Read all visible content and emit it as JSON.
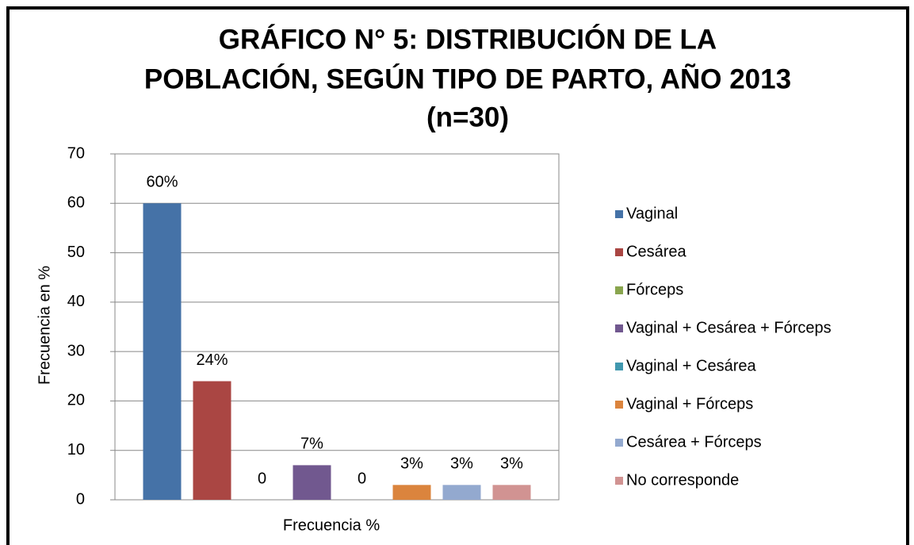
{
  "chart_data": {
    "type": "bar",
    "title": [
      "GRÁFICO N° 5: DISTRIBUCIÓN DE LA",
      "POBLACIÓN, SEGÚN  TIPO DE PARTO, AÑO 2013",
      "(n=30)"
    ],
    "ylabel": "Frecuencia en  %",
    "categories": [
      "Frecuencia %"
    ],
    "series": [
      {
        "name": "Vaginal",
        "color": "#4572A7",
        "values": [
          60
        ],
        "value_labels": [
          "60%"
        ]
      },
      {
        "name": "Cesárea",
        "color": "#AA4643",
        "values": [
          24
        ],
        "value_labels": [
          "24%"
        ]
      },
      {
        "name": "Fórceps",
        "color": "#89A54E",
        "values": [
          0
        ]
      },
      {
        "name": "Vaginal + Cesárea + Fórceps",
        "color": "#71588F",
        "values": [
          7
        ],
        "value_labels": [
          "7%"
        ]
      },
      {
        "name": "Vaginal + Cesárea",
        "color": "#4198AF",
        "values": [
          0
        ]
      },
      {
        "name": "Vaginal + Fórceps",
        "color": "#DB843D",
        "values": [
          3
        ],
        "value_labels": [
          "3%"
        ]
      },
      {
        "name": "Cesárea + Fórceps",
        "color": "#93A9CF",
        "values": [
          3
        ],
        "value_labels": [
          "3%"
        ]
      },
      {
        "name": "No corresponde",
        "color": "#D19392",
        "values": [
          3
        ],
        "value_labels": [
          "3%"
        ]
      }
    ],
    "ylim": [
      0,
      70
    ],
    "yticks": [
      0,
      10,
      20,
      30,
      40,
      50,
      60,
      70
    ],
    "grid": true,
    "legend": "right"
  }
}
